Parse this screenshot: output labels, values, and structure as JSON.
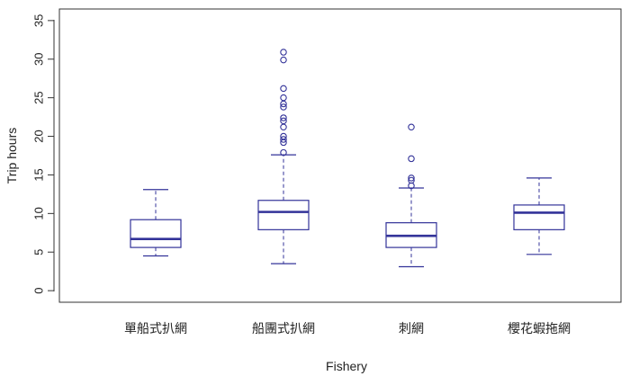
{
  "chart_data": {
    "type": "boxplot",
    "title": "",
    "xlabel": "Fishery",
    "ylabel": "Trip hours",
    "ylim": [
      -1.5,
      36.5
    ],
    "yticks": [
      0,
      5,
      10,
      15,
      20,
      25,
      30,
      35
    ],
    "grid": false,
    "legend": "none",
    "color": "#333399",
    "categories": [
      "單船式扒網",
      "船團式扒網",
      "刺網",
      "櫻花蝦拖網"
    ],
    "boxes": [
      {
        "name": "單船式扒網",
        "whisker_low": 4.5,
        "q1": 5.6,
        "median": 6.7,
        "q3": 9.2,
        "whisker_high": 13.1,
        "outliers": []
      },
      {
        "name": "船團式扒網",
        "whisker_low": 3.5,
        "q1": 7.9,
        "median": 10.2,
        "q3": 11.7,
        "whisker_high": 17.6,
        "outliers": [
          17.9,
          19.2,
          19.6,
          20.0,
          21.2,
          22.0,
          22.4,
          23.8,
          24.2,
          25.0,
          26.2,
          29.9,
          30.9
        ]
      },
      {
        "name": "刺網",
        "whisker_low": 3.1,
        "q1": 5.6,
        "median": 7.1,
        "q3": 8.8,
        "whisker_high": 13.3,
        "outliers": [
          13.6,
          14.3,
          14.6,
          17.1,
          21.2
        ]
      },
      {
        "name": "櫻花蝦拖網",
        "whisker_low": 4.7,
        "q1": 7.9,
        "median": 10.1,
        "q3": 11.1,
        "whisker_high": 14.6,
        "outliers": []
      }
    ]
  }
}
